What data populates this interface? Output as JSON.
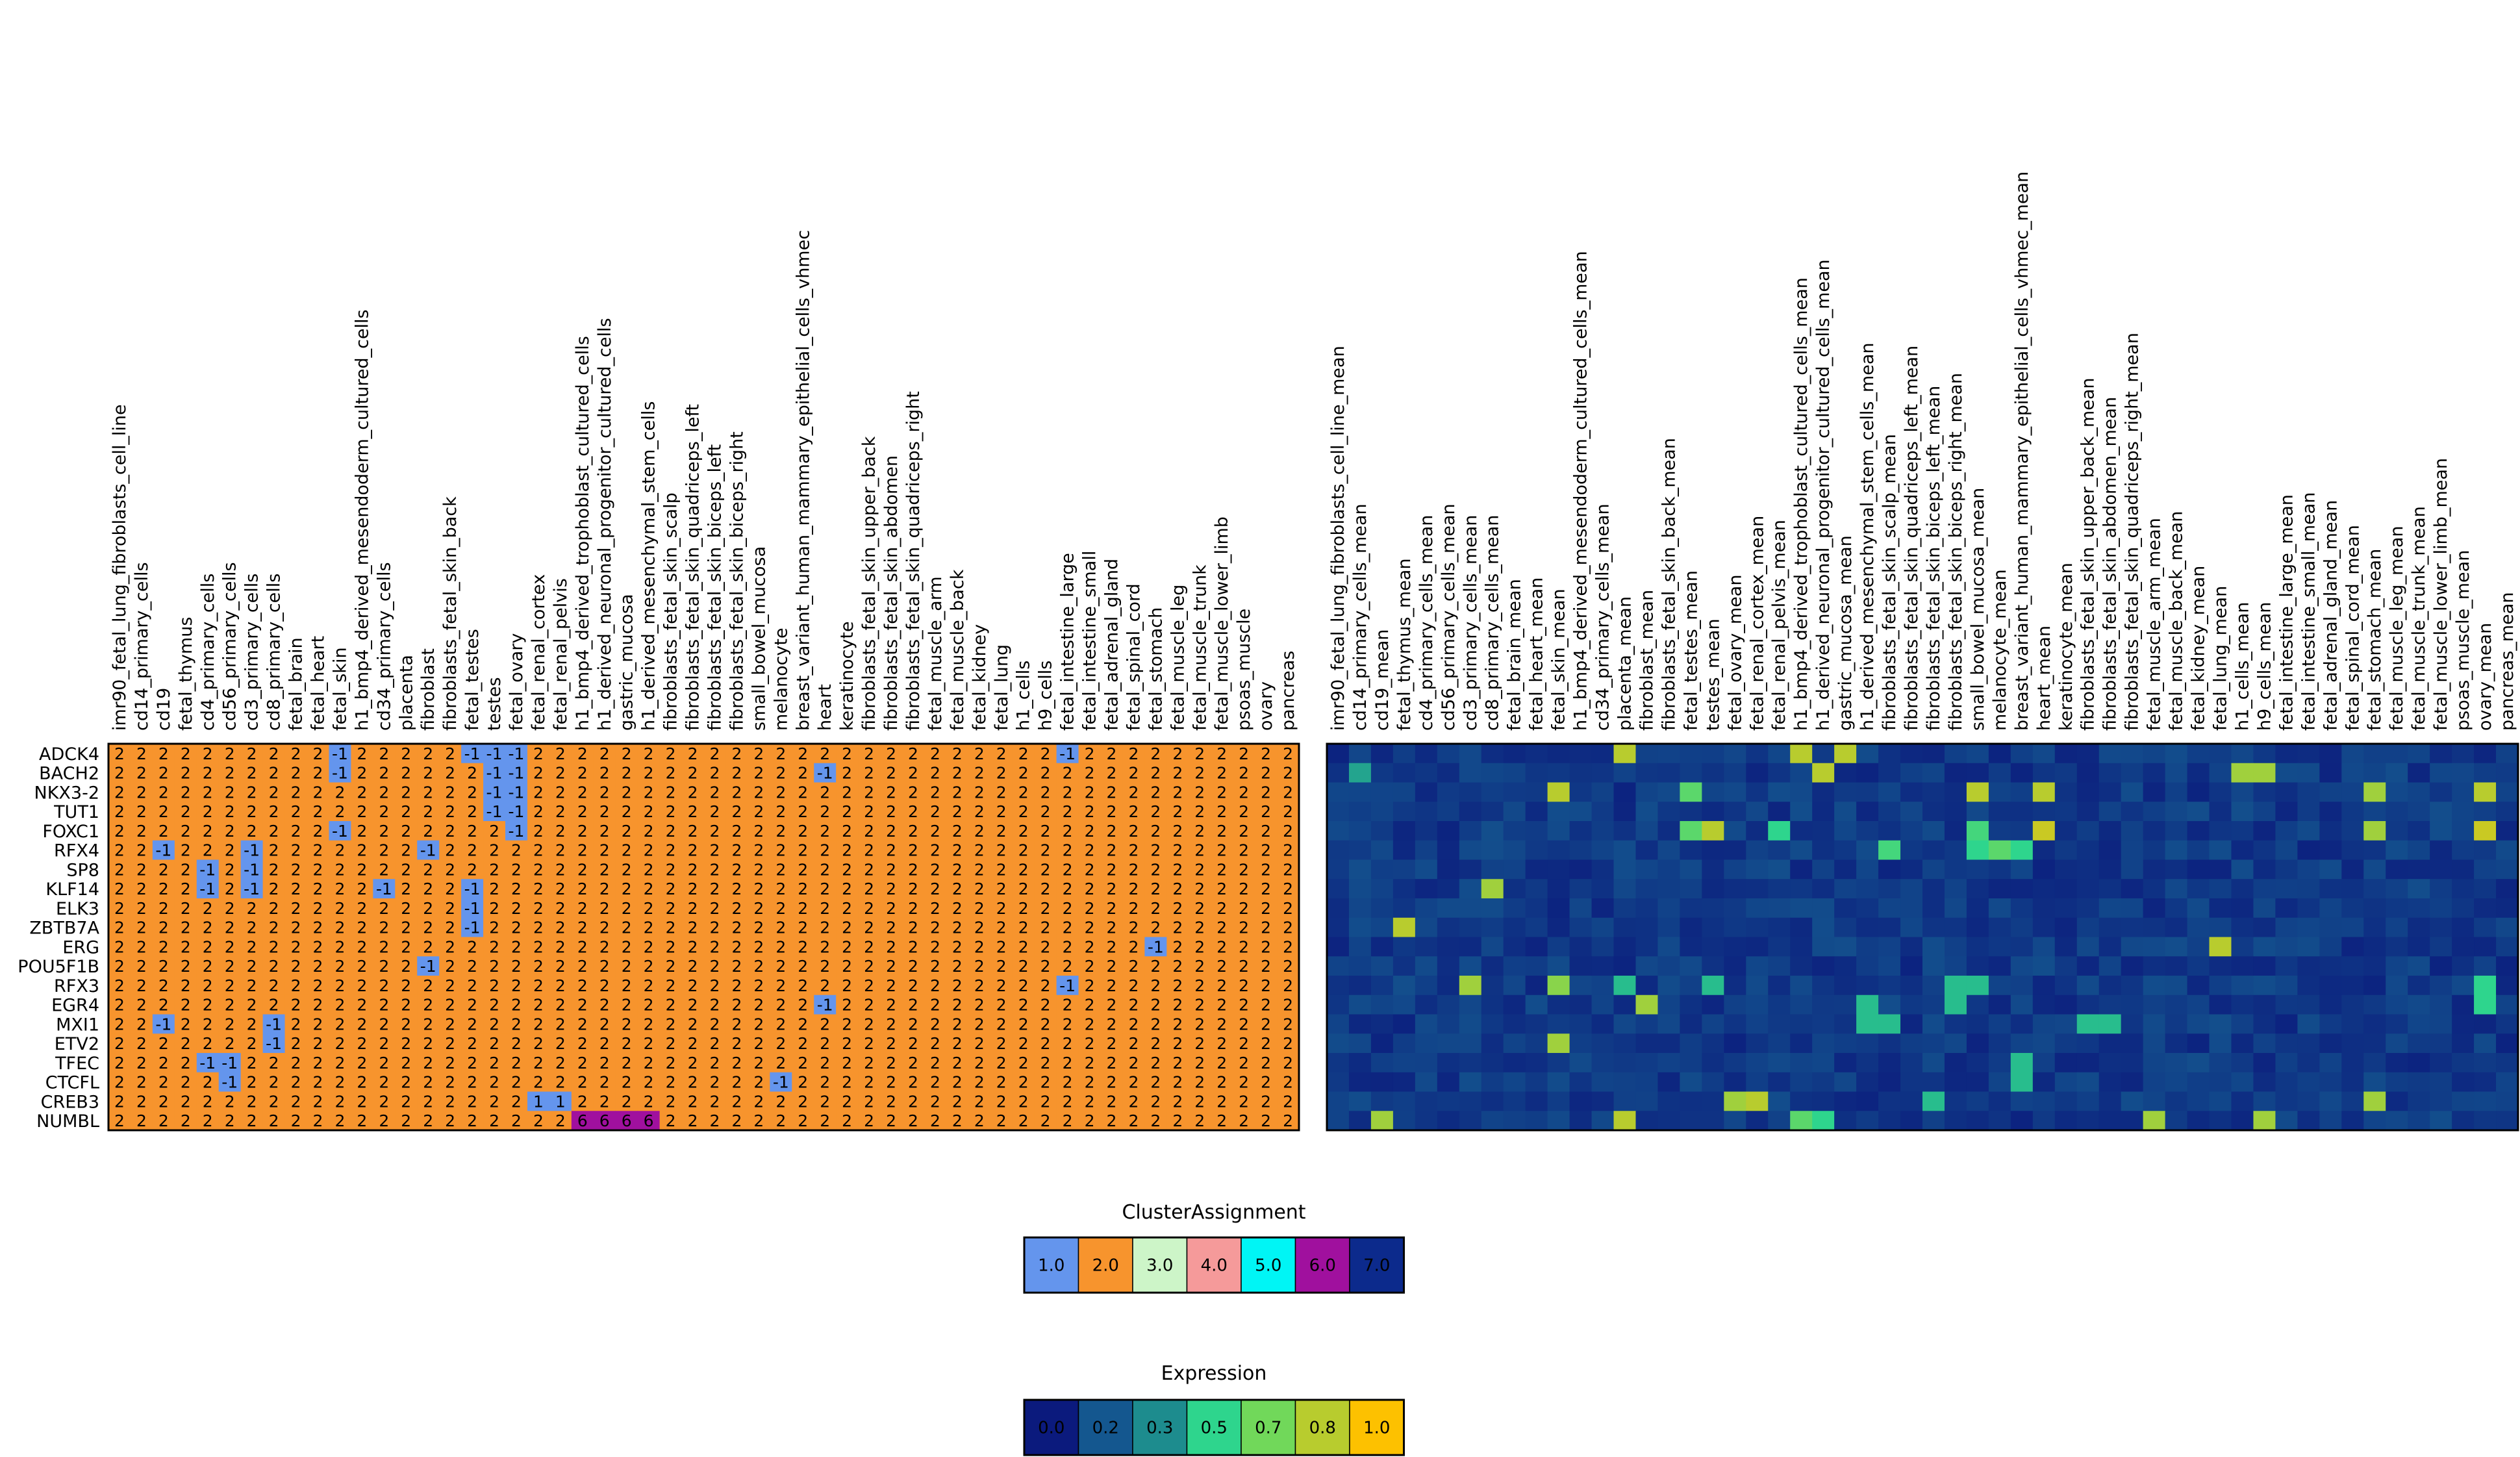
{
  "chart_data": [
    {
      "type": "heatmap",
      "title": "",
      "rows": [
        "ADCK4",
        "BACH2",
        "NKX3-2",
        "TUT1",
        "FOXC1",
        "RFX4",
        "SP8",
        "KLF14",
        "ELK3",
        "ZBTB7A",
        "ERG",
        "POU5F1B",
        "RFX3",
        "EGR4",
        "MXI1",
        "ETV2",
        "TFEC",
        "CTCFL",
        "CREB3",
        "NUMBL"
      ],
      "columns": [
        "imr90_fetal_lung_fibroblasts_cell_line",
        "cd14_primary_cells",
        "cd19",
        "fetal_thymus",
        "cd4_primary_cells",
        "cd56_primary_cells",
        "cd3_primary_cells",
        "cd8_primary_cells",
        "fetal_brain",
        "fetal_heart",
        "fetal_skin",
        "h1_bmp4_derived_mesendoderm_cultured_cells",
        "cd34_primary_cells",
        "placenta",
        "fibroblast",
        "fibroblasts_fetal_skin_back",
        "fetal_testes",
        "testes",
        "fetal_ovary",
        "fetal_renal_cortex",
        "fetal_renal_pelvis",
        "h1_bmp4_derived_trophoblast_cultured_cells",
        "h1_derived_neuronal_progenitor_cultured_cells",
        "gastric_mucosa",
        "h1_derived_mesenchymal_stem_cells",
        "fibroblasts_fetal_skin_scalp",
        "fibroblasts_fetal_skin_quadriceps_left",
        "fibroblasts_fetal_skin_biceps_left",
        "fibroblasts_fetal_skin_biceps_right",
        "small_bowel_mucosa",
        "melanocyte",
        "breast_variant_human_mammary_epithelial_cells_vhmec",
        "heart",
        "keratinocyte",
        "fibroblasts_fetal_skin_upper_back",
        "fibroblasts_fetal_skin_abdomen",
        "fibroblasts_fetal_skin_quadriceps_right",
        "fetal_muscle_arm",
        "fetal_muscle_back",
        "fetal_kidney",
        "fetal_lung",
        "h1_cells",
        "h9_cells",
        "fetal_intestine_large",
        "fetal_intestine_small",
        "fetal_adrenal_gland",
        "fetal_spinal_cord",
        "fetal_stomach",
        "fetal_muscle_leg",
        "fetal_muscle_trunk",
        "fetal_muscle_lower_limb",
        "psoas_muscle",
        "ovary",
        "pancreas"
      ],
      "default_value": 2,
      "exceptions": [
        {
          "row": "ADCK4",
          "col": 10,
          "value": -1
        },
        {
          "row": "ADCK4",
          "col": 16,
          "value": -1
        },
        {
          "row": "ADCK4",
          "col": 17,
          "value": -1
        },
        {
          "row": "ADCK4",
          "col": 18,
          "value": -1
        },
        {
          "row": "ADCK4",
          "col": 43,
          "value": -1
        },
        {
          "row": "BACH2",
          "col": 10,
          "value": -1
        },
        {
          "row": "BACH2",
          "col": 17,
          "value": -1
        },
        {
          "row": "BACH2",
          "col": 18,
          "value": -1
        },
        {
          "row": "BACH2",
          "col": 32,
          "value": -1
        },
        {
          "row": "NKX3-2",
          "col": 17,
          "value": -1
        },
        {
          "row": "NKX3-2",
          "col": 18,
          "value": -1
        },
        {
          "row": "TUT1",
          "col": 17,
          "value": -1
        },
        {
          "row": "TUT1",
          "col": 18,
          "value": -1
        },
        {
          "row": "FOXC1",
          "col": 10,
          "value": -1
        },
        {
          "row": "FOXC1",
          "col": 18,
          "value": -1
        },
        {
          "row": "RFX4",
          "col": 2,
          "value": -1
        },
        {
          "row": "RFX4",
          "col": 6,
          "value": -1
        },
        {
          "row": "RFX4",
          "col": 14,
          "value": -1
        },
        {
          "row": "SP8",
          "col": 4,
          "value": -1
        },
        {
          "row": "SP8",
          "col": 6,
          "value": -1
        },
        {
          "row": "KLF14",
          "col": 4,
          "value": -1
        },
        {
          "row": "KLF14",
          "col": 6,
          "value": -1
        },
        {
          "row": "KLF14",
          "col": 12,
          "value": -1
        },
        {
          "row": "KLF14",
          "col": 16,
          "value": -1
        },
        {
          "row": "ELK3",
          "col": 16,
          "value": -1
        },
        {
          "row": "ZBTB7A",
          "col": 16,
          "value": -1
        },
        {
          "row": "ERG",
          "col": 47,
          "value": -1
        },
        {
          "row": "POU5F1B",
          "col": 14,
          "value": -1
        },
        {
          "row": "RFX3",
          "col": 43,
          "value": -1
        },
        {
          "row": "EGR4",
          "col": 32,
          "value": -1
        },
        {
          "row": "MXI1",
          "col": 2,
          "value": -1
        },
        {
          "row": "MXI1",
          "col": 7,
          "value": -1
        },
        {
          "row": "ETV2",
          "col": 7,
          "value": -1
        },
        {
          "row": "TFEC",
          "col": 4,
          "value": -1
        },
        {
          "row": "TFEC",
          "col": 5,
          "value": -1
        },
        {
          "row": "CTCFL",
          "col": 5,
          "value": -1
        },
        {
          "row": "CTCFL",
          "col": 30,
          "value": -1
        },
        {
          "row": "CREB3",
          "col": 19,
          "value": 1
        },
        {
          "row": "CREB3",
          "col": 20,
          "value": 1
        },
        {
          "row": "NUMBL",
          "col": 21,
          "value": 6
        },
        {
          "row": "NUMBL",
          "col": 22,
          "value": 6
        },
        {
          "row": "NUMBL",
          "col": 23,
          "value": 6
        },
        {
          "row": "NUMBL",
          "col": 24,
          "value": 6
        }
      ],
      "value_colors": {
        "-1": "#6495ed",
        "1": "#6495ed",
        "2": "#f7942d",
        "6": "#a0109e"
      }
    },
    {
      "type": "heatmap",
      "title": "",
      "rows": [
        "ADCK4",
        "BACH2",
        "NKX3-2",
        "TUT1",
        "FOXC1",
        "RFX4",
        "SP8",
        "KLF14",
        "ELK3",
        "ZBTB7A",
        "ERG",
        "POU5F1B",
        "RFX3",
        "EGR4",
        "MXI1",
        "ETV2",
        "TFEC",
        "CTCFL",
        "CREB3",
        "NUMBL"
      ],
      "columns": [
        "imr90_fetal_lung_fibroblasts_cell_line_mean",
        "cd14_primary_cells_mean",
        "cd19_mean",
        "fetal_thymus_mean",
        "cd4_primary_cells_mean",
        "cd56_primary_cells_mean",
        "cd3_primary_cells_mean",
        "cd8_primary_cells_mean",
        "fetal_brain_mean",
        "fetal_heart_mean",
        "fetal_skin_mean",
        "h1_bmp4_derived_mesendoderm_cultured_cells_mean",
        "cd34_primary_cells_mean",
        "placenta_mean",
        "fibroblast_mean",
        "fibroblasts_fetal_skin_back_mean",
        "fetal_testes_mean",
        "testes_mean",
        "fetal_ovary_mean",
        "fetal_renal_cortex_mean",
        "fetal_renal_pelvis_mean",
        "h1_bmp4_derived_trophoblast_cultured_cells_mean",
        "h1_derived_neuronal_progenitor_cultured_cells_mean",
        "gastric_mucosa_mean",
        "h1_derived_mesenchymal_stem_cells_mean",
        "fibroblasts_fetal_skin_scalp_mean",
        "fibroblasts_fetal_skin_quadriceps_left_mean",
        "fibroblasts_fetal_skin_biceps_left_mean",
        "fibroblasts_fetal_skin_biceps_right_mean",
        "small_bowel_mucosa_mean",
        "melanocyte_mean",
        "breast_variant_human_mammary_epithelial_cells_vhmec_mean",
        "heart_mean",
        "keratinocyte_mean",
        "fibroblasts_fetal_skin_upper_back_mean",
        "fibroblasts_fetal_skin_abdomen_mean",
        "fibroblasts_fetal_skin_quadriceps_right_mean",
        "fetal_muscle_arm_mean",
        "fetal_muscle_back_mean",
        "fetal_kidney_mean",
        "fetal_lung_mean",
        "h1_cells_mean",
        "h9_cells_mean",
        "fetal_intestine_large_mean",
        "fetal_intestine_small_mean",
        "fetal_adrenal_gland_mean",
        "fetal_spinal_cord_mean",
        "fetal_stomach_mean",
        "fetal_muscle_leg_mean",
        "fetal_muscle_trunk_mean",
        "fetal_muscle_lower_limb_mean",
        "psoas_muscle_mean",
        "ovary_mean",
        "pancreas_mean"
      ],
      "base_value": 0.1,
      "highlights": [
        {
          "row": "ADCK4",
          "col": 13,
          "value": 0.8
        },
        {
          "row": "ADCK4",
          "col": 21,
          "value": 0.8
        },
        {
          "row": "ADCK4",
          "col": 23,
          "value": 0.8
        },
        {
          "row": "BACH2",
          "col": 1,
          "value": 0.4
        },
        {
          "row": "BACH2",
          "col": 22,
          "value": 0.8
        },
        {
          "row": "BACH2",
          "col": 41,
          "value": 0.75
        },
        {
          "row": "BACH2",
          "col": 42,
          "value": 0.75
        },
        {
          "row": "NKX3-2",
          "col": 10,
          "value": 0.8
        },
        {
          "row": "NKX3-2",
          "col": 16,
          "value": 0.6
        },
        {
          "row": "NKX3-2",
          "col": 29,
          "value": 0.8
        },
        {
          "row": "NKX3-2",
          "col": 32,
          "value": 0.8
        },
        {
          "row": "NKX3-2",
          "col": 47,
          "value": 0.75
        },
        {
          "row": "NKX3-2",
          "col": 52,
          "value": 0.8
        },
        {
          "row": "FOXC1",
          "col": 16,
          "value": 0.6
        },
        {
          "row": "FOXC1",
          "col": 17,
          "value": 0.8
        },
        {
          "row": "FOXC1",
          "col": 20,
          "value": 0.5
        },
        {
          "row": "FOXC1",
          "col": 29,
          "value": 0.55
        },
        {
          "row": "FOXC1",
          "col": 32,
          "value": 0.85
        },
        {
          "row": "FOXC1",
          "col": 47,
          "value": 0.75
        },
        {
          "row": "FOXC1",
          "col": 52,
          "value": 0.85
        },
        {
          "row": "RFX4",
          "col": 25,
          "value": 0.55
        },
        {
          "row": "RFX4",
          "col": 29,
          "value": 0.5
        },
        {
          "row": "RFX4",
          "col": 30,
          "value": 0.6
        },
        {
          "row": "RFX4",
          "col": 31,
          "value": 0.5
        },
        {
          "row": "KLF14",
          "col": 7,
          "value": 0.75
        },
        {
          "row": "ZBTB7A",
          "col": 3,
          "value": 0.8
        },
        {
          "row": "ERG",
          "col": 40,
          "value": 0.8
        },
        {
          "row": "RFX3",
          "col": 6,
          "value": 0.75
        },
        {
          "row": "RFX3",
          "col": 10,
          "value": 0.7
        },
        {
          "row": "RFX3",
          "col": 13,
          "value": 0.45
        },
        {
          "row": "RFX3",
          "col": 17,
          "value": 0.45
        },
        {
          "row": "RFX3",
          "col": 28,
          "value": 0.45
        },
        {
          "row": "RFX3",
          "col": 29,
          "value": 0.45
        },
        {
          "row": "RFX3",
          "col": 52,
          "value": 0.5
        },
        {
          "row": "EGR4",
          "col": 14,
          "value": 0.75
        },
        {
          "row": "EGR4",
          "col": 24,
          "value": 0.45
        },
        {
          "row": "EGR4",
          "col": 28,
          "value": 0.45
        },
        {
          "row": "EGR4",
          "col": 52,
          "value": 0.5
        },
        {
          "row": "MXI1",
          "col": 24,
          "value": 0.45
        },
        {
          "row": "MXI1",
          "col": 25,
          "value": 0.45
        },
        {
          "row": "MXI1",
          "col": 34,
          "value": 0.45
        },
        {
          "row": "MXI1",
          "col": 35,
          "value": 0.45
        },
        {
          "row": "ETV2",
          "col": 10,
          "value": 0.75
        },
        {
          "row": "TFEC",
          "col": 31,
          "value": 0.45
        },
        {
          "row": "CTCFL",
          "col": 31,
          "value": 0.45
        },
        {
          "row": "CREB3",
          "col": 18,
          "value": 0.75
        },
        {
          "row": "CREB3",
          "col": 19,
          "value": 0.8
        },
        {
          "row": "CREB3",
          "col": 27,
          "value": 0.45
        },
        {
          "row": "CREB3",
          "col": 47,
          "value": 0.75
        },
        {
          "row": "NUMBL",
          "col": 2,
          "value": 0.75
        },
        {
          "row": "NUMBL",
          "col": 13,
          "value": 0.8
        },
        {
          "row": "NUMBL",
          "col": 21,
          "value": 0.6
        },
        {
          "row": "NUMBL",
          "col": 22,
          "value": 0.5
        },
        {
          "row": "NUMBL",
          "col": 37,
          "value": 0.75
        },
        {
          "row": "NUMBL",
          "col": 42,
          "value": 0.75
        }
      ]
    }
  ],
  "legends": {
    "cluster": {
      "title": "ClusterAssignment",
      "items": [
        {
          "label": "1.0",
          "color": "#6495ed"
        },
        {
          "label": "2.0",
          "color": "#f7942d"
        },
        {
          "label": "3.0",
          "color": "#cdf5c8"
        },
        {
          "label": "4.0",
          "color": "#f59a9a"
        },
        {
          "label": "5.0",
          "color": "#00f5f5"
        },
        {
          "label": "6.0",
          "color": "#a0109e"
        },
        {
          "label": "7.0",
          "color": "#0c2a8c"
        }
      ]
    },
    "expression": {
      "title": "Expression",
      "items": [
        {
          "label": "0.0",
          "color": "#0b1a7d"
        },
        {
          "label": "0.2",
          "color": "#14578f"
        },
        {
          "label": "0.3",
          "color": "#1d8c8e"
        },
        {
          "label": "0.5",
          "color": "#2ed58d"
        },
        {
          "label": "0.7",
          "color": "#71d85a"
        },
        {
          "label": "0.8",
          "color": "#b8cc2e"
        },
        {
          "label": "1.0",
          "color": "#fdc100"
        }
      ]
    }
  }
}
